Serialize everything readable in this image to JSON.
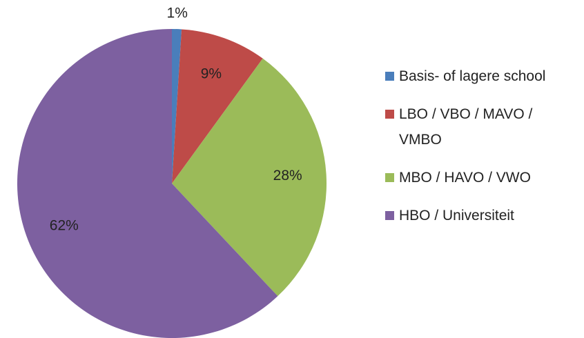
{
  "chart_data": {
    "type": "pie",
    "categories": [
      "Basis- of lagere school",
      "LBO / VBO / MAVO / VMBO",
      "MBO / HAVO / VWO",
      "HBO / Universiteit"
    ],
    "values": [
      1,
      9,
      28,
      62
    ],
    "value_labels": [
      "1%",
      "9%",
      "28%",
      "62%"
    ],
    "colors": [
      "#4a7ebb",
      "#be4b48",
      "#9bbb59",
      "#7d60a0"
    ],
    "legend": "right"
  }
}
